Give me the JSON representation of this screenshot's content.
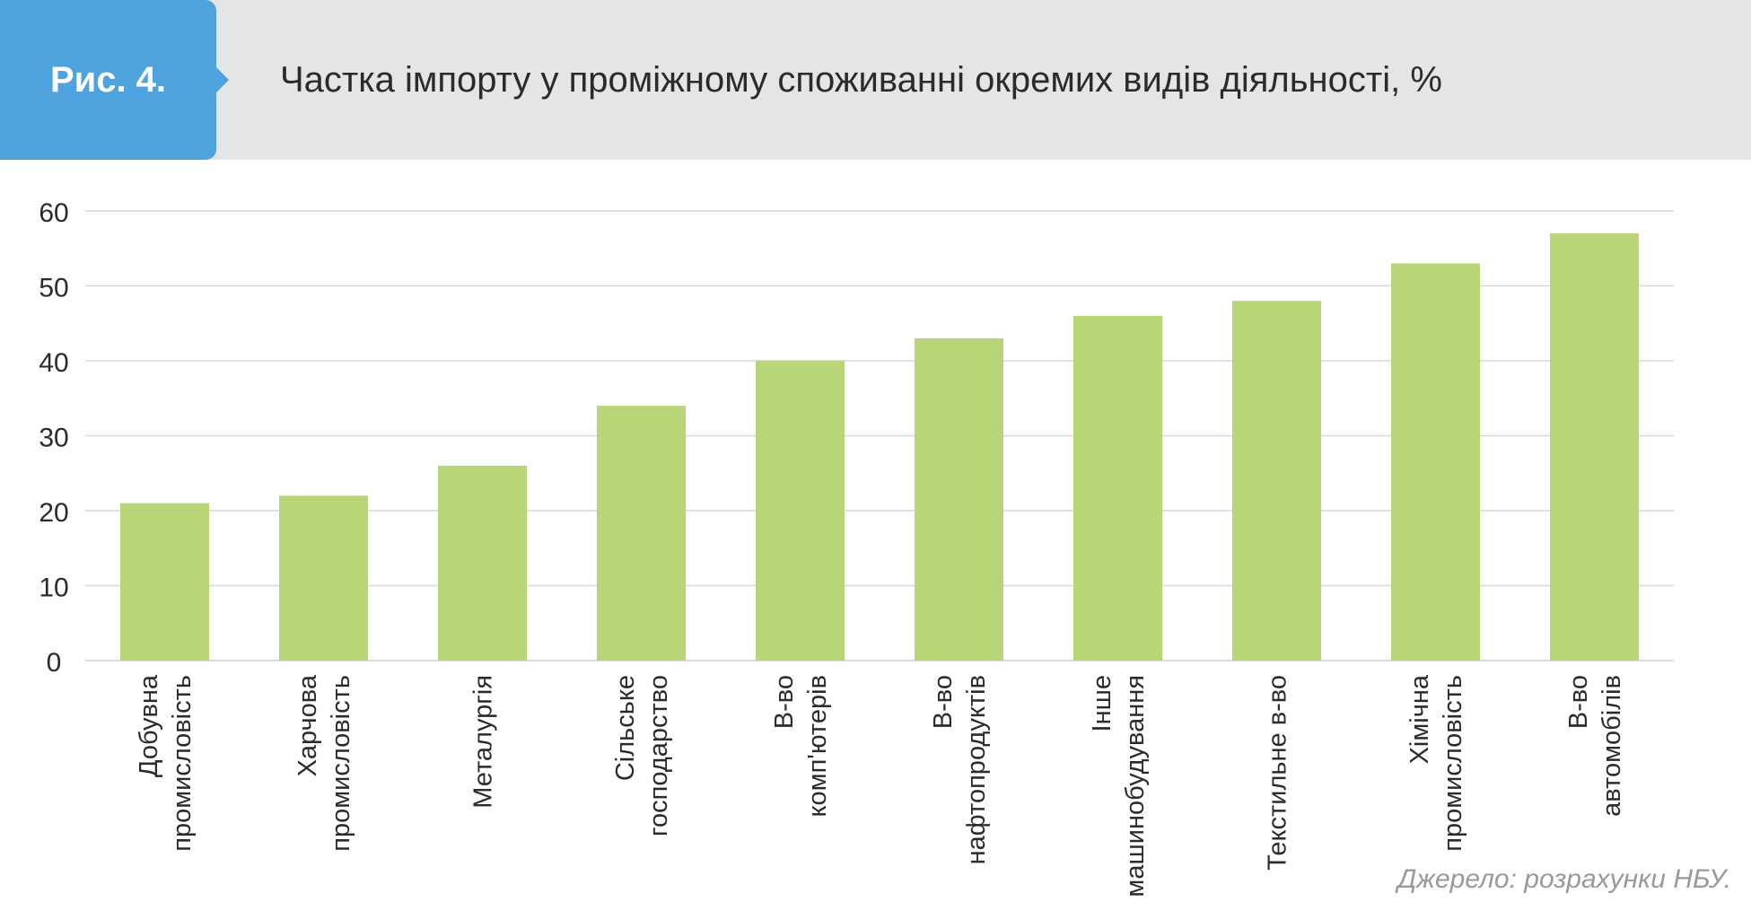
{
  "figure": {
    "label": "Рис. 4.",
    "title": "Частка імпорту у проміжному споживанні окремих видів діяльності, %"
  },
  "source": "Джерело: розрахунки НБУ.",
  "colors": {
    "bar": "#b8d677",
    "badge": "#4fa3dc",
    "header_band": "#e4e5e7",
    "grid": "#d9d9d9",
    "text": "#2b2b2b",
    "source_text": "#9a9a9a"
  },
  "chart_data": {
    "type": "bar",
    "title": "Частка імпорту у проміжному споживанні окремих видів діяльності, %",
    "xlabel": "",
    "ylabel": "",
    "ylim": [
      0,
      60
    ],
    "yticks": [
      0,
      10,
      20,
      30,
      40,
      50,
      60
    ],
    "grid": true,
    "legend": "none",
    "categories": [
      [
        "Добувна",
        "промисловість"
      ],
      [
        "Харчова",
        "промисловість"
      ],
      [
        "Металургія"
      ],
      [
        "Сільське",
        "господарство"
      ],
      [
        "В-во",
        "комп'ютерів"
      ],
      [
        "В-во",
        "нафтопродуктів"
      ],
      [
        "Інше",
        "машинобудування"
      ],
      [
        "Текстильне в-во"
      ],
      [
        "Хімічна",
        "промисловість"
      ],
      [
        "В-во",
        "автомобілів"
      ]
    ],
    "values": [
      21,
      22,
      26,
      34,
      40,
      43,
      46,
      48,
      53,
      57
    ]
  }
}
